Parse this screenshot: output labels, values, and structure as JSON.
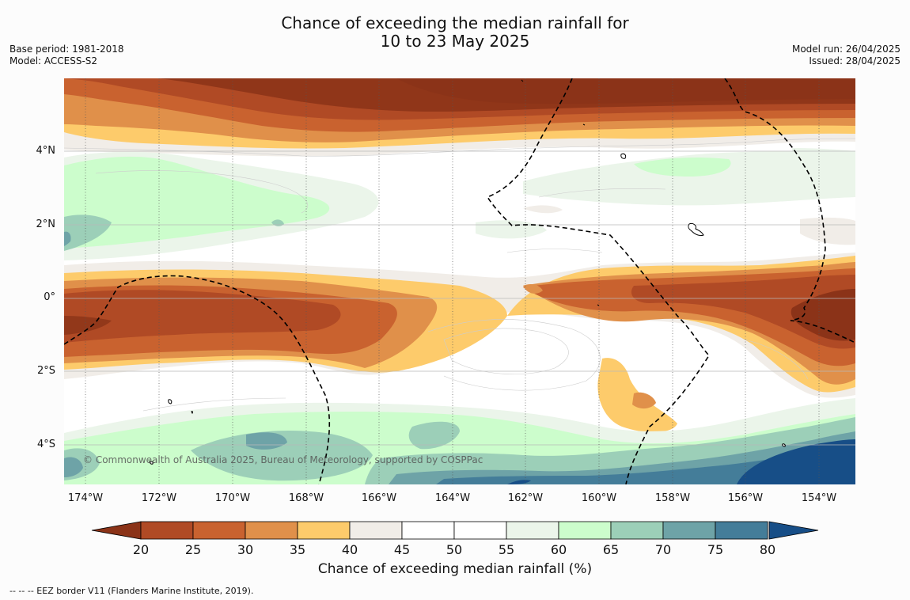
{
  "title": {
    "line1": "Chance of exceeding the median rainfall for",
    "line2": "10 to 23 May 2025"
  },
  "meta_left": {
    "base_period": "Base period: 1981-2018",
    "model": "Model: ACCESS-S2"
  },
  "meta_right": {
    "model_run": "Model run: 26/04/2025",
    "issued": "Issued: 28/04/2025"
  },
  "map": {
    "copyright": "© Commonwealth of Australia 2025, Bureau of Meteorology, supported by COSPPac",
    "lat_labels": [
      "4°N",
      "2°N",
      "0°",
      "2°S",
      "4°S"
    ],
    "lon_labels": [
      "174°W",
      "172°W",
      "170°W",
      "168°W",
      "166°W",
      "164°W",
      "162°W",
      "160°W",
      "158°W",
      "156°W",
      "154°W"
    ]
  },
  "colorbar": {
    "label": "Chance of exceeding median rainfall (%)",
    "ticks": [
      "20",
      "25",
      "30",
      "35",
      "40",
      "45",
      "50",
      "55",
      "60",
      "65",
      "70",
      "75",
      "80"
    ],
    "under_color": "#8b3318",
    "over_color": "#174e87",
    "colors": [
      "#b04a25",
      "#c9622f",
      "#e0904a",
      "#fdcb6b",
      "#f1ede8",
      "#ffffff",
      "#ffffff",
      "#ebf5ea",
      "#ccfdcc",
      "#9ccfb8",
      "#6ea3a7",
      "#447d99"
    ]
  },
  "footnote": "--  --  -- EEZ border V11 (Flanders Marine Institute, 2019)."
}
